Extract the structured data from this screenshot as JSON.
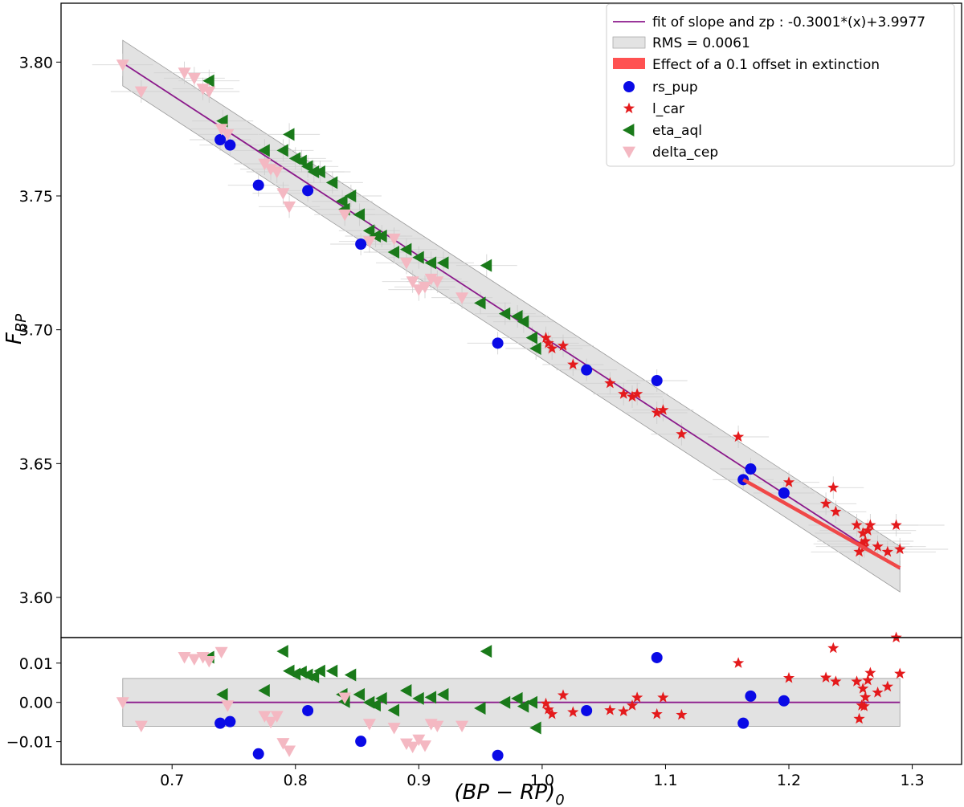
{
  "chart_data": [
    {
      "type": "scatter",
      "panel": "main",
      "xlabel": "(BP − RP)₀",
      "ylabel": "F_BP",
      "ylabel_main": "F",
      "ylabel_sub": "BP",
      "xlim": [
        0.61,
        1.34
      ],
      "ylim": [
        3.585,
        3.822
      ],
      "yticks": [
        3.6,
        3.65,
        3.7,
        3.75,
        3.8
      ],
      "ytick_labels": [
        "3.60",
        "3.65",
        "3.70",
        "3.75",
        "3.80"
      ],
      "fit": {
        "slope": -0.3001,
        "intercept": 3.9977,
        "x_range": [
          0.66,
          1.29
        ],
        "rms": 0.0061
      },
      "extinction_effect": {
        "x": [
          1.163,
          1.29
        ],
        "y": [
          3.644,
          3.611
        ]
      },
      "legend": {
        "placement": "top-right",
        "fit_label": "fit of slope and zp : -0.3001*(x)+3.9977",
        "rms_label": "RMS = 0.0061",
        "extinction_label": "Effect of a 0.1 offset in extinction"
      },
      "series": [
        {
          "name": "rs_pup",
          "marker": "circle",
          "color": "#0a0ae6",
          "x": [
            0.739,
            0.747,
            0.77,
            0.81,
            0.853,
            0.964,
            1.036,
            1.093,
            1.163,
            1.169,
            1.196
          ],
          "y": [
            3.771,
            3.769,
            3.754,
            3.752,
            3.732,
            3.695,
            3.685,
            3.681,
            3.644,
            3.648,
            3.639
          ]
        },
        {
          "name": "l_car",
          "marker": "star",
          "color": "#e41a1c",
          "x": [
            1.003,
            1.005,
            1.008,
            1.017,
            1.025,
            1.055,
            1.066,
            1.073,
            1.077,
            1.093,
            1.098,
            1.113,
            1.159,
            1.2,
            1.23,
            1.236,
            1.238,
            1.255,
            1.257,
            1.259,
            1.26,
            1.261,
            1.262,
            1.264,
            1.266,
            1.272,
            1.28,
            1.287,
            1.29
          ],
          "y": [
            3.697,
            3.695,
            3.693,
            3.694,
            3.687,
            3.68,
            3.676,
            3.675,
            3.676,
            3.669,
            3.67,
            3.661,
            3.66,
            3.643,
            3.635,
            3.641,
            3.632,
            3.627,
            3.617,
            3.62,
            3.624,
            3.619,
            3.621,
            3.625,
            3.627,
            3.619,
            3.617,
            3.627,
            3.618
          ]
        },
        {
          "name": "eta_aql",
          "marker": "triangle-left",
          "color": "#1a7a1a",
          "x": [
            0.73,
            0.741,
            0.775,
            0.79,
            0.795,
            0.8,
            0.805,
            0.81,
            0.815,
            0.82,
            0.83,
            0.838,
            0.84,
            0.845,
            0.852,
            0.86,
            0.865,
            0.87,
            0.88,
            0.89,
            0.9,
            0.91,
            0.92,
            0.95,
            0.955,
            0.97,
            0.98,
            0.985,
            0.992,
            0.995
          ],
          "y": [
            3.793,
            3.778,
            3.767,
            3.767,
            3.773,
            3.764,
            3.763,
            3.761,
            3.759,
            3.759,
            3.755,
            3.748,
            3.745,
            3.75,
            3.743,
            3.737,
            3.735,
            3.735,
            3.729,
            3.73,
            3.727,
            3.725,
            3.725,
            3.71,
            3.724,
            3.706,
            3.705,
            3.703,
            3.697,
            3.693
          ]
        },
        {
          "name": "delta_cep",
          "marker": "triangle-down",
          "color": "#f4b8c2",
          "x": [
            0.66,
            0.675,
            0.71,
            0.718,
            0.725,
            0.73,
            0.74,
            0.745,
            0.775,
            0.78,
            0.785,
            0.79,
            0.795,
            0.84,
            0.86,
            0.88,
            0.89,
            0.895,
            0.9,
            0.905,
            0.91,
            0.915,
            0.935
          ],
          "y": [
            3.799,
            3.789,
            3.796,
            3.794,
            3.79,
            3.789,
            3.775,
            3.773,
            3.762,
            3.76,
            3.759,
            3.751,
            3.746,
            3.743,
            3.733,
            3.734,
            3.725,
            3.718,
            3.715,
            3.716,
            3.719,
            3.718,
            3.712
          ]
        }
      ]
    },
    {
      "type": "scatter",
      "panel": "residuals",
      "xlabel": "(BP − RP)₀",
      "xlabel_main": "(BP − RP)",
      "xlabel_sub": "0",
      "ylabel": "",
      "xlim": [
        0.61,
        1.34
      ],
      "ylim": [
        -0.0158,
        0.0165
      ],
      "xticks": [
        0.7,
        0.8,
        0.9,
        1.0,
        1.1,
        1.2,
        1.3
      ],
      "xtick_labels": [
        "0.7",
        "0.8",
        "0.9",
        "1.0",
        "1.1",
        "1.2",
        "1.3"
      ],
      "yticks": [
        -0.01,
        0.0,
        0.01
      ],
      "ytick_labels": [
        "−0.01",
        "0.00",
        "0.01"
      ],
      "zero_line_range": [
        0.66,
        1.29
      ],
      "rms_band": [
        -0.0061,
        0.0061
      ],
      "series": [
        {
          "name": "rs_pup",
          "marker": "circle",
          "color": "#0a0ae6",
          "x": [
            0.739,
            0.747,
            0.77,
            0.81,
            0.853,
            0.964,
            1.036,
            1.093,
            1.163,
            1.169,
            1.196
          ],
          "y": [
            -0.0053,
            -0.0049,
            -0.0131,
            -0.0021,
            -0.0099,
            -0.0135,
            -0.0021,
            0.0114,
            -0.0053,
            0.0016,
            0.0004
          ]
        },
        {
          "name": "l_car",
          "marker": "star",
          "color": "#e41a1c",
          "x": [
            1.003,
            1.005,
            1.008,
            1.017,
            1.025,
            1.055,
            1.066,
            1.073,
            1.077,
            1.093,
            1.098,
            1.113,
            1.159,
            1.2,
            1.23,
            1.236,
            1.238,
            1.255,
            1.257,
            1.259,
            1.26,
            1.261,
            1.262,
            1.264,
            1.266,
            1.272,
            1.28,
            1.287,
            1.29
          ],
          "y": [
            -0.0003,
            -0.0018,
            -0.003,
            0.0018,
            -0.0025,
            -0.002,
            -0.0023,
            -0.0008,
            0.0012,
            -0.003,
            0.0012,
            -0.0032,
            0.01,
            0.0062,
            0.0063,
            0.0138,
            0.0053,
            0.0053,
            -0.0042,
            -0.0008,
            0.0035,
            -0.001,
            0.0013,
            0.0056,
            0.0075,
            0.0025,
            0.004,
            0.0165,
            0.0073
          ]
        },
        {
          "name": "eta_aql",
          "marker": "triangle-left",
          "color": "#1a7a1a",
          "x": [
            0.73,
            0.741,
            0.775,
            0.79,
            0.795,
            0.8,
            0.805,
            0.81,
            0.815,
            0.82,
            0.83,
            0.838,
            0.84,
            0.845,
            0.852,
            0.86,
            0.865,
            0.87,
            0.88,
            0.89,
            0.9,
            0.91,
            0.92,
            0.95,
            0.955,
            0.97,
            0.98,
            0.985,
            0.992,
            0.995
          ],
          "y": [
            0.0115,
            0.002,
            0.003,
            0.013,
            0.008,
            0.0072,
            0.0077,
            0.007,
            0.0065,
            0.008,
            0.008,
            0.002,
            0.0002,
            0.007,
            0.002,
            0.0,
            -0.0007,
            0.001,
            -0.002,
            0.003,
            0.001,
            0.0013,
            0.002,
            -0.0015,
            0.013,
            0.0,
            0.001,
            -0.001,
            0.0,
            -0.0065
          ]
        },
        {
          "name": "delta_cep",
          "marker": "triangle-down",
          "color": "#f4b8c2",
          "x": [
            0.66,
            0.675,
            0.71,
            0.718,
            0.725,
            0.73,
            0.74,
            0.745,
            0.775,
            0.78,
            0.785,
            0.79,
            0.795,
            0.84,
            0.86,
            0.88,
            0.89,
            0.895,
            0.9,
            0.905,
            0.91,
            0.915,
            0.935
          ],
          "y": [
            0.0,
            -0.006,
            0.0115,
            0.011,
            0.0115,
            0.0105,
            0.0128,
            -0.0008,
            -0.0035,
            -0.005,
            -0.0035,
            -0.0104,
            -0.0123,
            0.0012,
            -0.0055,
            -0.0065,
            -0.0105,
            -0.0113,
            -0.0095,
            -0.011,
            -0.0055,
            -0.006,
            -0.006
          ]
        }
      ]
    }
  ]
}
